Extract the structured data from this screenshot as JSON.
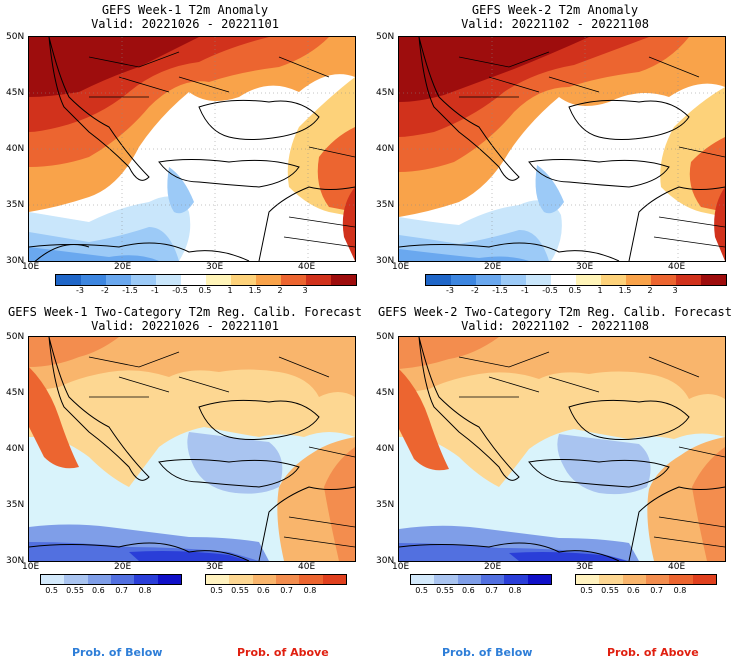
{
  "panels": [
    {
      "title": "GEFS Week-1 T2m Anomaly",
      "valid": "Valid: 20221026 - 20221101"
    },
    {
      "title": "GEFS Week-2 T2m Anomaly",
      "valid": "Valid: 20221102 - 20221108"
    },
    {
      "title": "GEFS Week-1 Two-Category T2m Reg. Calib. Forecast",
      "valid": "Valid: 20221026 - 20221101"
    },
    {
      "title": "GEFS Week-2 Two-Category T2m Reg. Calib. Forecast",
      "valid": "Valid: 20221102 - 20221108"
    }
  ],
  "lat_labels": [
    "50N",
    "45N",
    "40N",
    "35N",
    "30N"
  ],
  "lon_labels": [
    "10E",
    "20E",
    "30E",
    "40E"
  ],
  "anomaly_colorbar": {
    "labels": [
      "-3",
      "-2",
      "-1.5",
      "-1",
      "-0.5",
      "0.5",
      "1",
      "1.5",
      "2",
      "3"
    ],
    "colors": [
      "#1f66c8",
      "#3d86e0",
      "#6aa8ef",
      "#9ccaf7",
      "#c9e6fb",
      "#ffffff",
      "#fff4b8",
      "#fdd27a",
      "#f9a34a",
      "#ec6530",
      "#d1321c",
      "#9e0d0d"
    ]
  },
  "prob_colorbars": {
    "labels": [
      "0.5",
      "0.55",
      "0.6",
      "0.7",
      "0.8"
    ],
    "below_colors": [
      "#d3e9fb",
      "#a9c4f0",
      "#7f9ee8",
      "#5270e0",
      "#2a3ed8",
      "#1010c8"
    ],
    "above_colors": [
      "#fff2bf",
      "#fdd792",
      "#f9b56c",
      "#f38d4e",
      "#ec6530",
      "#e0401e"
    ]
  },
  "prob_below_label": "Prob. of Below",
  "prob_above_label": "Prob. of Above",
  "colors": {
    "below_text": "#2e7ed8",
    "above_text": "#e02010",
    "sea_prob": "#d9f3fb"
  }
}
